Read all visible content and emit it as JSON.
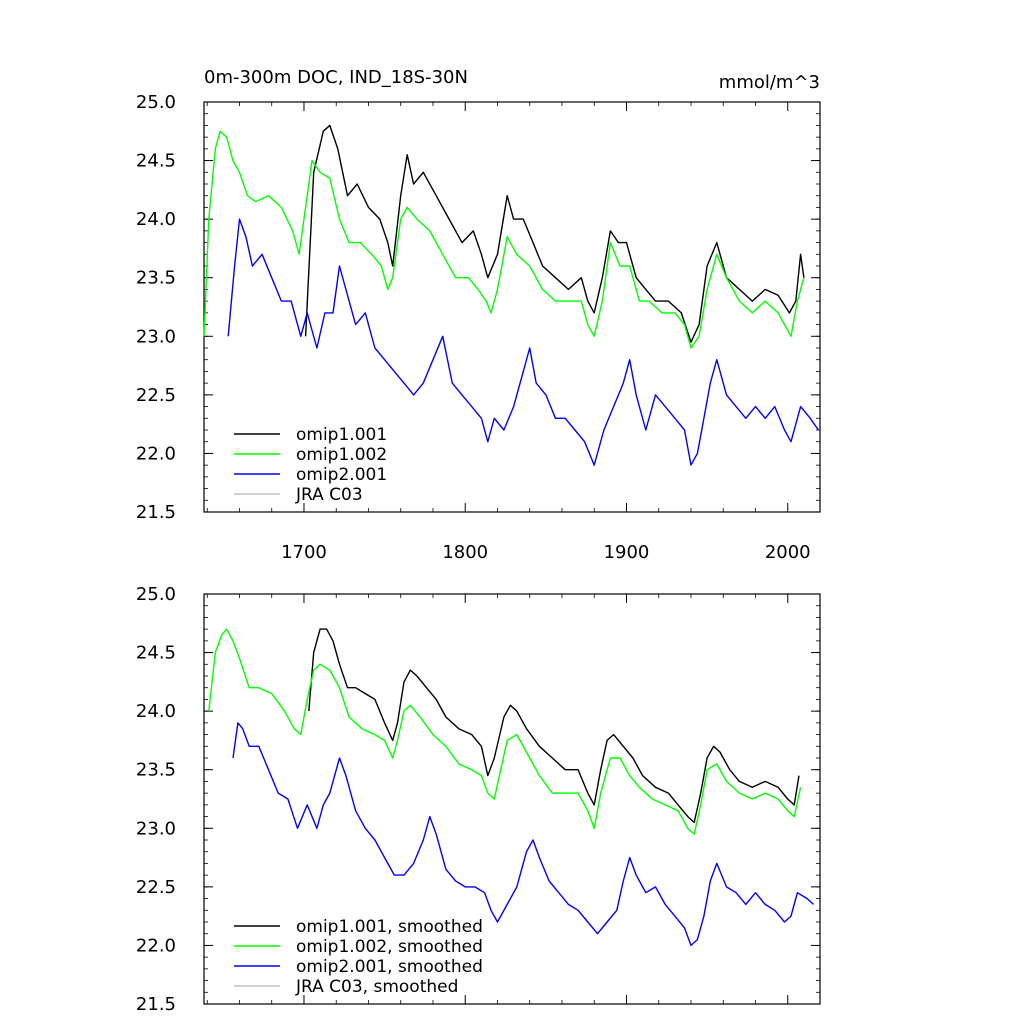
{
  "chart_data": [
    {
      "type": "line",
      "title": "0m-300m DOC, IND_18S-30N",
      "units": "mmol/m^3",
      "xlabel": "",
      "ylabel": "",
      "xlim": [
        1638,
        2020
      ],
      "ylim": [
        21.5,
        25.0
      ],
      "x_ticks": [
        1700,
        1800,
        1900,
        2000
      ],
      "y_ticks": [
        21.5,
        22.0,
        22.5,
        23.0,
        23.5,
        24.0,
        24.5,
        25.0
      ],
      "y_tick_labels": [
        "21.5",
        "22.0",
        "22.5",
        "23.0",
        "23.5",
        "24.0",
        "24.5",
        "25.0"
      ],
      "legend_position": "bottom-left",
      "series": [
        {
          "name": "omip1.001",
          "color": "#000000",
          "x": [
            1701,
            1706,
            1712,
            1716,
            1721,
            1727,
            1733,
            1740,
            1747,
            1752,
            1755,
            1760,
            1764,
            1768,
            1774,
            1782,
            1790,
            1798,
            1805,
            1810,
            1814,
            1820,
            1826,
            1830,
            1836,
            1842,
            1848,
            1856,
            1864,
            1872,
            1876,
            1880,
            1885,
            1890,
            1895,
            1900,
            1906,
            1912,
            1918,
            1926,
            1934,
            1940,
            1945,
            1950,
            1956,
            1962,
            1970,
            1978,
            1986,
            1994,
            2001,
            2005,
            2008,
            2010
          ],
          "values": [
            23.0,
            24.4,
            24.75,
            24.8,
            24.6,
            24.2,
            24.3,
            24.1,
            24.0,
            23.8,
            23.6,
            24.2,
            24.55,
            24.3,
            24.4,
            24.2,
            24.0,
            23.8,
            23.9,
            23.7,
            23.5,
            23.7,
            24.2,
            24.0,
            24.0,
            23.8,
            23.6,
            23.5,
            23.4,
            23.5,
            23.3,
            23.2,
            23.5,
            23.9,
            23.8,
            23.8,
            23.5,
            23.4,
            23.3,
            23.3,
            23.2,
            22.95,
            23.1,
            23.6,
            23.8,
            23.5,
            23.4,
            23.3,
            23.4,
            23.35,
            23.2,
            23.3,
            23.7,
            23.5
          ]
        },
        {
          "name": "omip1.002",
          "color": "#00ff00",
          "x": [
            1638,
            1641,
            1645,
            1648,
            1652,
            1656,
            1660,
            1665,
            1670,
            1678,
            1686,
            1693,
            1697,
            1701,
            1705,
            1710,
            1716,
            1722,
            1728,
            1735,
            1742,
            1748,
            1752,
            1755,
            1760,
            1764,
            1770,
            1778,
            1786,
            1794,
            1802,
            1808,
            1813,
            1816,
            1820,
            1826,
            1832,
            1840,
            1848,
            1856,
            1864,
            1872,
            1876,
            1880,
            1885,
            1890,
            1896,
            1902,
            1908,
            1914,
            1922,
            1930,
            1936,
            1940,
            1945,
            1950,
            1956,
            1962,
            1970,
            1978,
            1986,
            1994,
            2002,
            2006,
            2010
          ],
          "values": [
            23.0,
            24.0,
            24.6,
            24.75,
            24.7,
            24.5,
            24.4,
            24.2,
            24.15,
            24.2,
            24.1,
            23.9,
            23.7,
            24.1,
            24.5,
            24.4,
            24.35,
            24.0,
            23.8,
            23.8,
            23.7,
            23.6,
            23.4,
            23.5,
            24.0,
            24.1,
            24.0,
            23.9,
            23.7,
            23.5,
            23.5,
            23.4,
            23.3,
            23.2,
            23.4,
            23.85,
            23.7,
            23.6,
            23.4,
            23.3,
            23.3,
            23.3,
            23.1,
            23.0,
            23.3,
            23.8,
            23.6,
            23.6,
            23.3,
            23.3,
            23.2,
            23.2,
            23.1,
            22.9,
            23.0,
            23.4,
            23.7,
            23.5,
            23.3,
            23.2,
            23.3,
            23.2,
            23.0,
            23.3,
            23.5
          ]
        },
        {
          "name": "omip2.001",
          "color": "#0000ff",
          "x": [
            1653,
            1657,
            1660,
            1664,
            1668,
            1674,
            1680,
            1686,
            1692,
            1698,
            1702,
            1708,
            1713,
            1718,
            1722,
            1726,
            1732,
            1738,
            1744,
            1750,
            1756,
            1762,
            1768,
            1774,
            1780,
            1786,
            1792,
            1798,
            1804,
            1810,
            1814,
            1818,
            1824,
            1830,
            1836,
            1840,
            1844,
            1850,
            1856,
            1862,
            1868,
            1874,
            1880,
            1886,
            1892,
            1898,
            1902,
            1906,
            1912,
            1918,
            1924,
            1930,
            1936,
            1940,
            1944,
            1948,
            1952,
            1956,
            1962,
            1968,
            1974,
            1980,
            1986,
            1992,
            1998,
            2002,
            2008,
            2014,
            2019
          ],
          "values": [
            23.0,
            23.6,
            24.0,
            23.85,
            23.6,
            23.7,
            23.5,
            23.3,
            23.3,
            23.0,
            23.2,
            22.9,
            23.2,
            23.2,
            23.6,
            23.4,
            23.1,
            23.2,
            22.9,
            22.8,
            22.7,
            22.6,
            22.5,
            22.6,
            22.8,
            23.0,
            22.6,
            22.5,
            22.4,
            22.3,
            22.1,
            22.3,
            22.2,
            22.4,
            22.7,
            22.9,
            22.6,
            22.5,
            22.3,
            22.3,
            22.2,
            22.1,
            21.9,
            22.2,
            22.4,
            22.6,
            22.8,
            22.5,
            22.2,
            22.5,
            22.4,
            22.3,
            22.2,
            21.9,
            22.0,
            22.3,
            22.6,
            22.8,
            22.5,
            22.4,
            22.3,
            22.4,
            22.3,
            22.4,
            22.2,
            22.1,
            22.4,
            22.3,
            22.2
          ]
        },
        {
          "name": "JRA C03",
          "color": "#c0c0c0",
          "x": [],
          "values": []
        }
      ]
    },
    {
      "type": "line",
      "title": "",
      "xlabel": "",
      "ylabel": "",
      "xlim": [
        1638,
        2020
      ],
      "ylim": [
        21.5,
        25.0
      ],
      "x_ticks": [
        1700,
        1800,
        1900,
        2000
      ],
      "y_ticks": [
        21.5,
        22.0,
        22.5,
        23.0,
        23.5,
        24.0,
        24.5,
        25.0
      ],
      "y_tick_labels": [
        "21.5",
        "22.0",
        "22.5",
        "23.0",
        "23.5",
        "24.0",
        "24.5",
        "25.0"
      ],
      "legend_position": "bottom-left",
      "series": [
        {
          "name": "omip1.001, smoothed",
          "color": "#000000",
          "x": [
            1703,
            1706,
            1710,
            1714,
            1718,
            1722,
            1727,
            1732,
            1738,
            1744,
            1750,
            1755,
            1758,
            1762,
            1766,
            1770,
            1776,
            1782,
            1788,
            1796,
            1804,
            1810,
            1814,
            1818,
            1824,
            1828,
            1832,
            1838,
            1846,
            1854,
            1862,
            1870,
            1876,
            1880,
            1884,
            1888,
            1892,
            1898,
            1904,
            1910,
            1918,
            1926,
            1932,
            1938,
            1942,
            1946,
            1950,
            1954,
            1958,
            1964,
            1970,
            1978,
            1986,
            1994,
            2000,
            2004,
            2007
          ],
          "values": [
            24.0,
            24.5,
            24.7,
            24.7,
            24.6,
            24.4,
            24.2,
            24.2,
            24.15,
            24.1,
            23.9,
            23.75,
            23.9,
            24.25,
            24.35,
            24.3,
            24.2,
            24.1,
            23.95,
            23.85,
            23.8,
            23.7,
            23.45,
            23.6,
            23.95,
            24.05,
            24.0,
            23.85,
            23.7,
            23.6,
            23.5,
            23.5,
            23.3,
            23.2,
            23.5,
            23.75,
            23.8,
            23.7,
            23.6,
            23.45,
            23.35,
            23.3,
            23.2,
            23.1,
            23.05,
            23.3,
            23.6,
            23.7,
            23.65,
            23.5,
            23.4,
            23.35,
            23.4,
            23.35,
            23.25,
            23.2,
            23.45
          ]
        },
        {
          "name": "omip1.002, smoothed",
          "color": "#00ff00",
          "x": [
            1641,
            1645,
            1649,
            1652,
            1656,
            1660,
            1666,
            1672,
            1680,
            1688,
            1694,
            1698,
            1702,
            1706,
            1710,
            1716,
            1722,
            1728,
            1736,
            1744,
            1750,
            1755,
            1758,
            1762,
            1766,
            1772,
            1780,
            1788,
            1796,
            1804,
            1810,
            1814,
            1818,
            1822,
            1826,
            1832,
            1838,
            1846,
            1854,
            1862,
            1870,
            1876,
            1880,
            1884,
            1890,
            1896,
            1902,
            1908,
            1916,
            1924,
            1932,
            1938,
            1942,
            1946,
            1950,
            1956,
            1962,
            1970,
            1978,
            1986,
            1994,
            2000,
            2004,
            2008
          ],
          "values": [
            24.0,
            24.5,
            24.65,
            24.7,
            24.6,
            24.45,
            24.2,
            24.2,
            24.15,
            24.0,
            23.85,
            23.8,
            24.1,
            24.35,
            24.4,
            24.35,
            24.2,
            23.95,
            23.85,
            23.8,
            23.75,
            23.6,
            23.75,
            24.0,
            24.05,
            23.95,
            23.8,
            23.7,
            23.55,
            23.5,
            23.45,
            23.3,
            23.25,
            23.5,
            23.75,
            23.8,
            23.65,
            23.45,
            23.3,
            23.3,
            23.3,
            23.15,
            23.0,
            23.3,
            23.6,
            23.6,
            23.45,
            23.35,
            23.25,
            23.2,
            23.15,
            23.0,
            22.95,
            23.2,
            23.5,
            23.55,
            23.4,
            23.3,
            23.25,
            23.3,
            23.25,
            23.15,
            23.1,
            23.35
          ]
        },
        {
          "name": "omip2.001, smoothed",
          "color": "#0000ff",
          "x": [
            1656,
            1659,
            1662,
            1666,
            1672,
            1678,
            1684,
            1690,
            1696,
            1702,
            1708,
            1712,
            1716,
            1722,
            1726,
            1732,
            1738,
            1744,
            1750,
            1756,
            1762,
            1768,
            1774,
            1778,
            1782,
            1788,
            1794,
            1800,
            1806,
            1812,
            1816,
            1820,
            1826,
            1832,
            1838,
            1842,
            1846,
            1852,
            1858,
            1864,
            1870,
            1876,
            1882,
            1888,
            1894,
            1898,
            1902,
            1906,
            1912,
            1918,
            1924,
            1930,
            1936,
            1940,
            1944,
            1948,
            1952,
            1956,
            1962,
            1968,
            1974,
            1980,
            1986,
            1992,
            1998,
            2002,
            2006,
            2012,
            2016
          ],
          "values": [
            23.6,
            23.9,
            23.85,
            23.7,
            23.7,
            23.5,
            23.3,
            23.25,
            23.0,
            23.2,
            23.0,
            23.2,
            23.3,
            23.6,
            23.45,
            23.15,
            23.0,
            22.9,
            22.75,
            22.6,
            22.6,
            22.7,
            22.9,
            23.1,
            22.95,
            22.65,
            22.55,
            22.5,
            22.5,
            22.45,
            22.3,
            22.2,
            22.35,
            22.5,
            22.8,
            22.9,
            22.75,
            22.55,
            22.45,
            22.35,
            22.3,
            22.2,
            22.1,
            22.2,
            22.3,
            22.55,
            22.75,
            22.6,
            22.45,
            22.5,
            22.35,
            22.25,
            22.15,
            22.0,
            22.05,
            22.25,
            22.55,
            22.7,
            22.5,
            22.45,
            22.35,
            22.45,
            22.35,
            22.3,
            22.2,
            22.25,
            22.45,
            22.4,
            22.35
          ]
        },
        {
          "name": "JRA C03, smoothed",
          "color": "#c0c0c0",
          "x": [],
          "values": []
        }
      ]
    }
  ]
}
